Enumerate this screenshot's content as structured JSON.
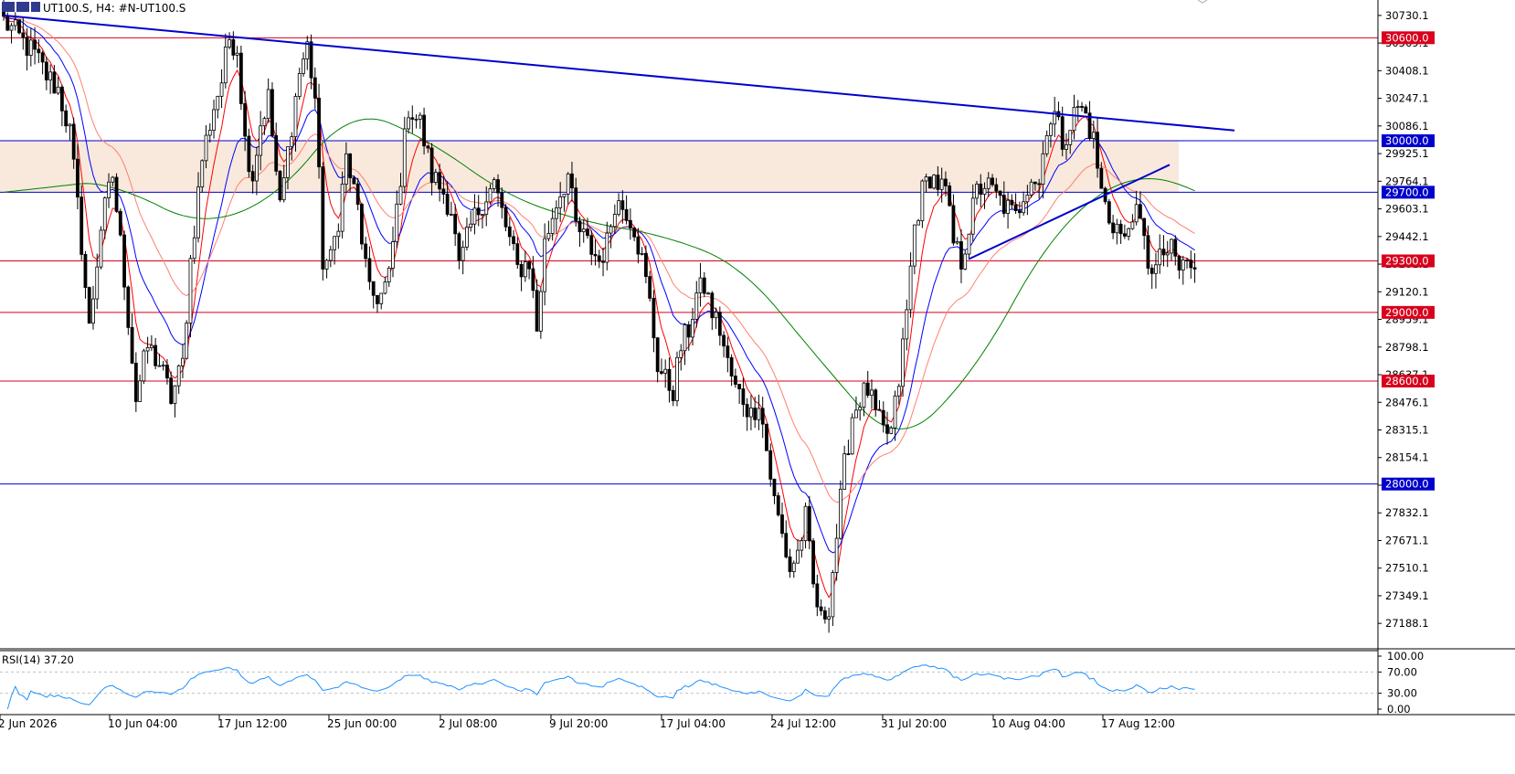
{
  "header": {
    "symbol_text": "UT100.S, H4:  #N-UT100.S"
  },
  "price_axis": {
    "ticks": [
      "30730.1",
      "30569.1",
      "30408.1",
      "30247.1",
      "30086.1",
      "29925.1",
      "29764.1",
      "29603.1",
      "29442.1",
      "29281.1",
      "29120.1",
      "28959.1",
      "28798.1",
      "28637.1",
      "28476.1",
      "28315.1",
      "28154.1",
      "27993.1",
      "27832.1",
      "27671.1",
      "27510.1",
      "27349.1",
      "27188.1"
    ]
  },
  "levels": [
    {
      "label": "30600.0",
      "price": 30600,
      "color": "#d8001c"
    },
    {
      "label": "30000.0",
      "price": 30000,
      "color": "#0000cc"
    },
    {
      "label": "29700.0",
      "price": 29700,
      "color": "#0000cc"
    },
    {
      "label": "29300.0",
      "price": 29300,
      "color": "#d8001c"
    },
    {
      "label": "29000.0",
      "price": 29000,
      "color": "#d8001c"
    },
    {
      "label": "28600.0",
      "price": 28600,
      "color": "#d8001c"
    },
    {
      "label": "28000.0",
      "price": 28000,
      "color": "#0000cc"
    }
  ],
  "zone": {
    "from": 30000,
    "to": 29700,
    "color": "#f8e9dc"
  },
  "rsi": {
    "label": "RSI(14) 37.20",
    "period": 14,
    "value": 37.2,
    "ticks": [
      "100.00",
      "70.00",
      "30.00",
      "0.00"
    ],
    "levels": [
      70,
      30
    ]
  },
  "time_axis": {
    "labels": [
      "2 Jun 2026",
      "10 Jun 04:00",
      "17 Jun 12:00",
      "25 Jun 00:00",
      "2 Jul 08:00",
      "9 Jul 20:00",
      "17 Jul 04:00",
      "24 Jul 12:00",
      "31 Jul 20:00",
      "10 Aug 04:00",
      "17 Aug 12:00"
    ]
  },
  "chart_data": {
    "type": "candlestick",
    "timeframe": "H4",
    "ylim": [
      27040,
      30820
    ],
    "moving_averages": [
      {
        "color": "#ff0000"
      },
      {
        "color": "#0000ff"
      },
      {
        "color": "#ff8070"
      },
      {
        "color": "#008000"
      }
    ],
    "trendlines": [
      {
        "color": "#0000cc",
        "from": {
          "time": "2 Jun 2026",
          "price": 30730
        },
        "to": {
          "time": "21 Aug",
          "price": 30060
        }
      },
      {
        "color": "#0000cc",
        "from": {
          "time": "7 Aug",
          "price": 29310
        },
        "to": {
          "time": "19 Aug",
          "price": 29860
        }
      }
    ],
    "price_path": [
      [
        0,
        30700
      ],
      [
        4,
        30600
      ],
      [
        8,
        30500
      ],
      [
        11,
        30380
      ],
      [
        14,
        30300
      ],
      [
        17,
        30050
      ],
      [
        20,
        29400
      ],
      [
        22,
        28900
      ],
      [
        25,
        29500
      ],
      [
        28,
        29800
      ],
      [
        31,
        29200
      ],
      [
        34,
        28500
      ],
      [
        37,
        28800
      ],
      [
        40,
        28700
      ],
      [
        43,
        28500
      ],
      [
        46,
        28700
      ],
      [
        48,
        29300
      ],
      [
        51,
        29900
      ],
      [
        54,
        30200
      ],
      [
        56,
        30350
      ],
      [
        58,
        30600
      ],
      [
        60,
        30550
      ],
      [
        62,
        30000
      ],
      [
        64,
        29800
      ],
      [
        66,
        30100
      ],
      [
        68,
        30250
      ],
      [
        71,
        29600
      ],
      [
        74,
        30100
      ],
      [
        76,
        30400
      ],
      [
        78,
        30550
      ],
      [
        80,
        30250
      ],
      [
        82,
        29300
      ],
      [
        84,
        29300
      ],
      [
        86,
        29550
      ],
      [
        88,
        29900
      ],
      [
        91,
        29600
      ],
      [
        94,
        29100
      ],
      [
        97,
        29100
      ],
      [
        99,
        29200
      ],
      [
        101,
        29600
      ],
      [
        104,
        30200
      ],
      [
        107,
        30100
      ],
      [
        110,
        29800
      ],
      [
        113,
        29700
      ],
      [
        115,
        29600
      ],
      [
        117,
        29250
      ],
      [
        120,
        29500
      ],
      [
        123,
        29650
      ],
      [
        126,
        29750
      ],
      [
        129,
        29500
      ],
      [
        132,
        29250
      ],
      [
        135,
        29300
      ],
      [
        137,
        28900
      ],
      [
        139,
        29400
      ],
      [
        142,
        29650
      ],
      [
        145,
        29800
      ],
      [
        147,
        29500
      ],
      [
        150,
        29400
      ],
      [
        153,
        29300
      ],
      [
        155,
        29400
      ],
      [
        157,
        29650
      ],
      [
        160,
        29600
      ],
      [
        162,
        29500
      ],
      [
        164,
        29300
      ],
      [
        166,
        29050
      ],
      [
        168,
        28700
      ],
      [
        170,
        28600
      ],
      [
        172,
        28550
      ],
      [
        174,
        28800
      ],
      [
        176,
        28900
      ],
      [
        178,
        29100
      ],
      [
        180,
        29150
      ],
      [
        182,
        29000
      ],
      [
        184,
        28900
      ],
      [
        186,
        28700
      ],
      [
        188,
        28550
      ],
      [
        190,
        28500
      ],
      [
        192,
        28400
      ],
      [
        194,
        28500
      ],
      [
        196,
        28200
      ],
      [
        198,
        27900
      ],
      [
        200,
        27700
      ],
      [
        202,
        27500
      ],
      [
        204,
        27600
      ],
      [
        206,
        27800
      ],
      [
        208,
        27400
      ],
      [
        210,
        27200
      ],
      [
        212,
        27300
      ],
      [
        214,
        27700
      ],
      [
        216,
        28100
      ],
      [
        218,
        28400
      ],
      [
        220,
        28500
      ],
      [
        222,
        28550
      ],
      [
        224,
        28400
      ],
      [
        226,
        28300
      ],
      [
        228,
        28300
      ],
      [
        230,
        28600
      ],
      [
        232,
        29000
      ],
      [
        234,
        29500
      ],
      [
        236,
        29700
      ],
      [
        238,
        29800
      ],
      [
        240,
        29750
      ],
      [
        242,
        29700
      ],
      [
        244,
        29400
      ],
      [
        246,
        29300
      ],
      [
        248,
        29500
      ],
      [
        250,
        29700
      ],
      [
        252,
        29750
      ],
      [
        254,
        29700
      ],
      [
        256,
        29650
      ],
      [
        258,
        29600
      ],
      [
        260,
        29550
      ],
      [
        262,
        29700
      ],
      [
        264,
        29800
      ],
      [
        266,
        29750
      ],
      [
        268,
        30100
      ],
      [
        270,
        30150
      ],
      [
        272,
        30000
      ],
      [
        274,
        30100
      ],
      [
        276,
        30200
      ],
      [
        278,
        30150
      ],
      [
        280,
        30000
      ],
      [
        282,
        29700
      ],
      [
        284,
        29550
      ],
      [
        286,
        29500
      ],
      [
        288,
        29400
      ],
      [
        290,
        29600
      ],
      [
        292,
        29500
      ],
      [
        294,
        29300
      ],
      [
        296,
        29250
      ],
      [
        298,
        29350
      ],
      [
        300,
        29350
      ],
      [
        302,
        29250
      ],
      [
        304,
        29300
      ],
      [
        306,
        29220
      ]
    ],
    "overlay_path": [
      [
        0,
        29700
      ],
      [
        20,
        29800
      ],
      [
        40,
        29200
      ],
      [
        60,
        30100
      ],
      [
        80,
        30300
      ],
      [
        100,
        29700
      ],
      [
        120,
        29650
      ],
      [
        140,
        29400
      ],
      [
        160,
        29500
      ],
      [
        180,
        29050
      ],
      [
        200,
        28400
      ],
      [
        220,
        28000
      ],
      [
        240,
        29300
      ],
      [
        260,
        29650
      ],
      [
        280,
        30000
      ],
      [
        300,
        29400
      ],
      [
        306,
        29350
      ]
    ]
  }
}
